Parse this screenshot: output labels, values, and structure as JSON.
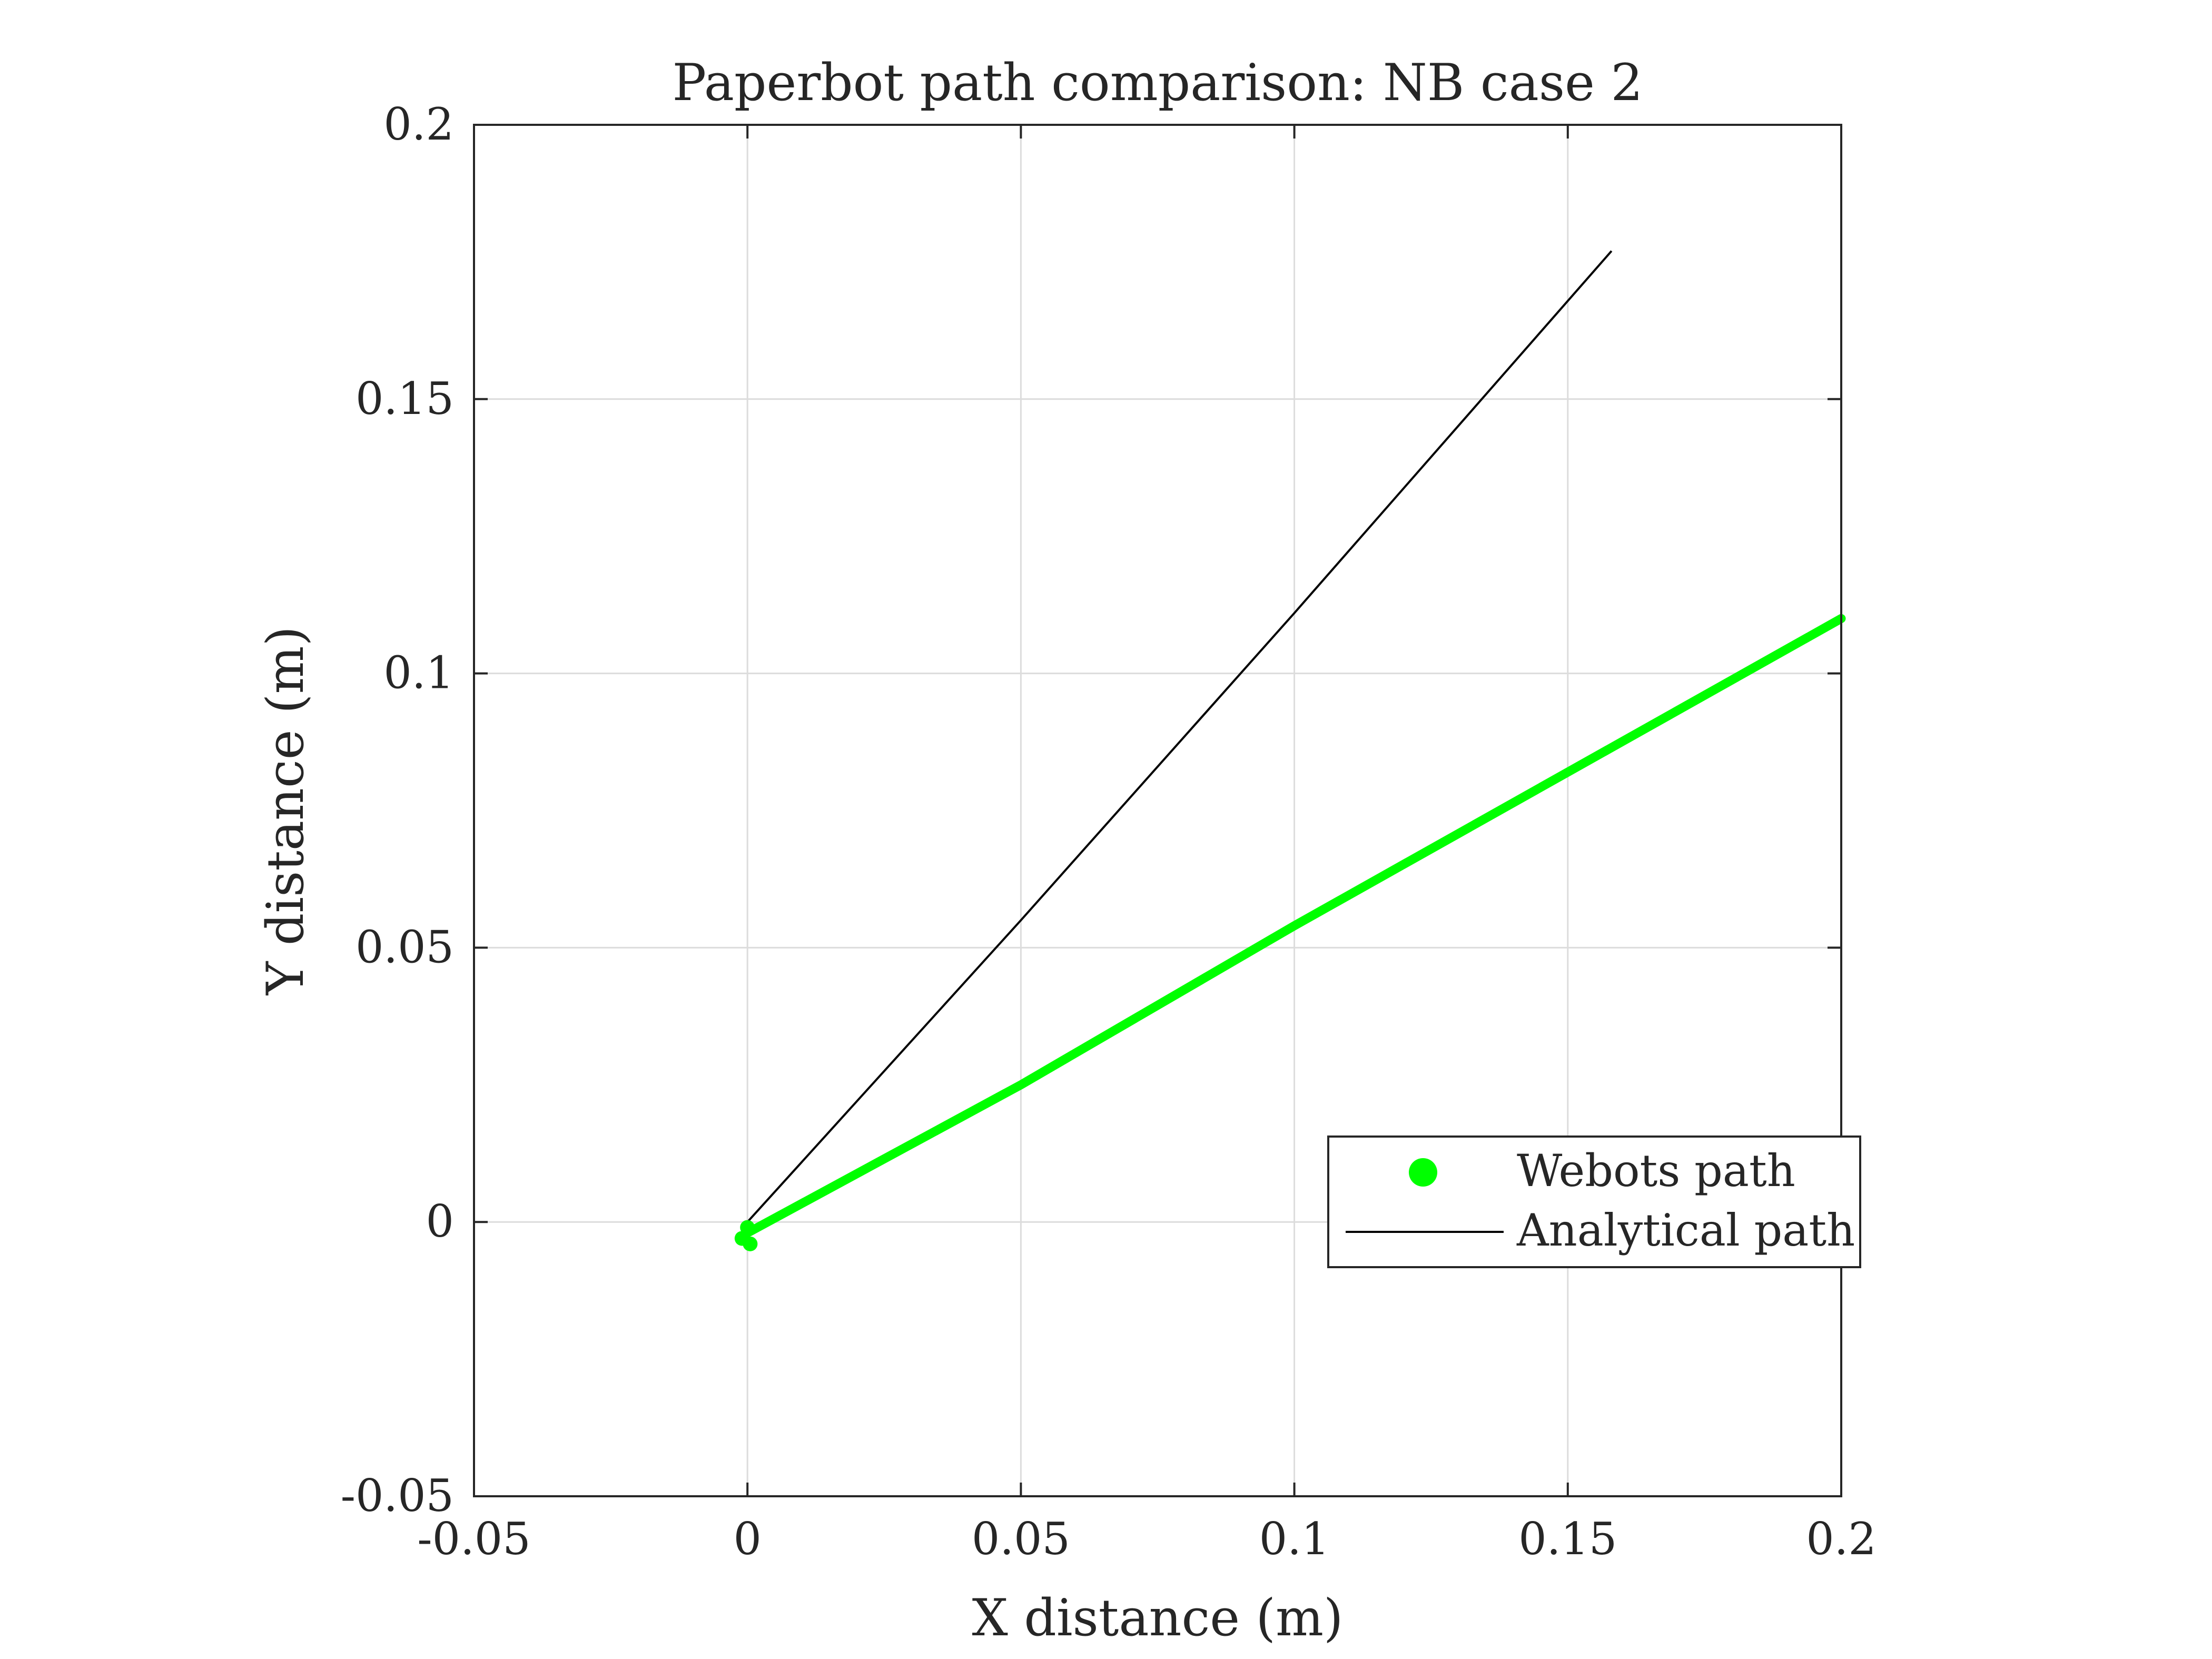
{
  "chart_data": {
    "type": "line",
    "title": "Paperbot path comparison: NB case 2",
    "xlabel": "X distance (m)",
    "ylabel": "Y distance (m)",
    "xlim": [
      -0.05,
      0.2
    ],
    "ylim": [
      -0.05,
      0.2
    ],
    "x_ticks": [
      -0.05,
      0,
      0.05,
      0.1,
      0.15,
      0.2
    ],
    "y_ticks": [
      -0.05,
      0,
      0.05,
      0.1,
      0.15,
      0.2
    ],
    "x_tick_labels": [
      "-0.05",
      "0",
      "0.05",
      "0.1",
      "0.15",
      "0.2"
    ],
    "y_tick_labels": [
      "-0.05",
      "0",
      "0.05",
      "0.1",
      "0.15",
      "0.2"
    ],
    "grid": true,
    "legend_position": "lower-right",
    "series": [
      {
        "name": "Webots path",
        "color": "#00ff00",
        "style": "thick-line-with-dots",
        "x": [
          0.0,
          0.05,
          0.1,
          0.15,
          0.2
        ],
        "y": [
          -0.002,
          0.025,
          0.054,
          0.082,
          0.11
        ]
      },
      {
        "name": "Analytical path",
        "color": "#000000",
        "style": "thin-line",
        "x": [
          0.0,
          0.05,
          0.1,
          0.158
        ],
        "y": [
          0.0,
          0.055,
          0.111,
          0.177
        ]
      }
    ],
    "start_markers": {
      "color": "#00ff00",
      "points": [
        [
          -0.001,
          -0.003
        ],
        [
          0.0,
          -0.001
        ],
        [
          0.0005,
          -0.004
        ]
      ]
    }
  }
}
